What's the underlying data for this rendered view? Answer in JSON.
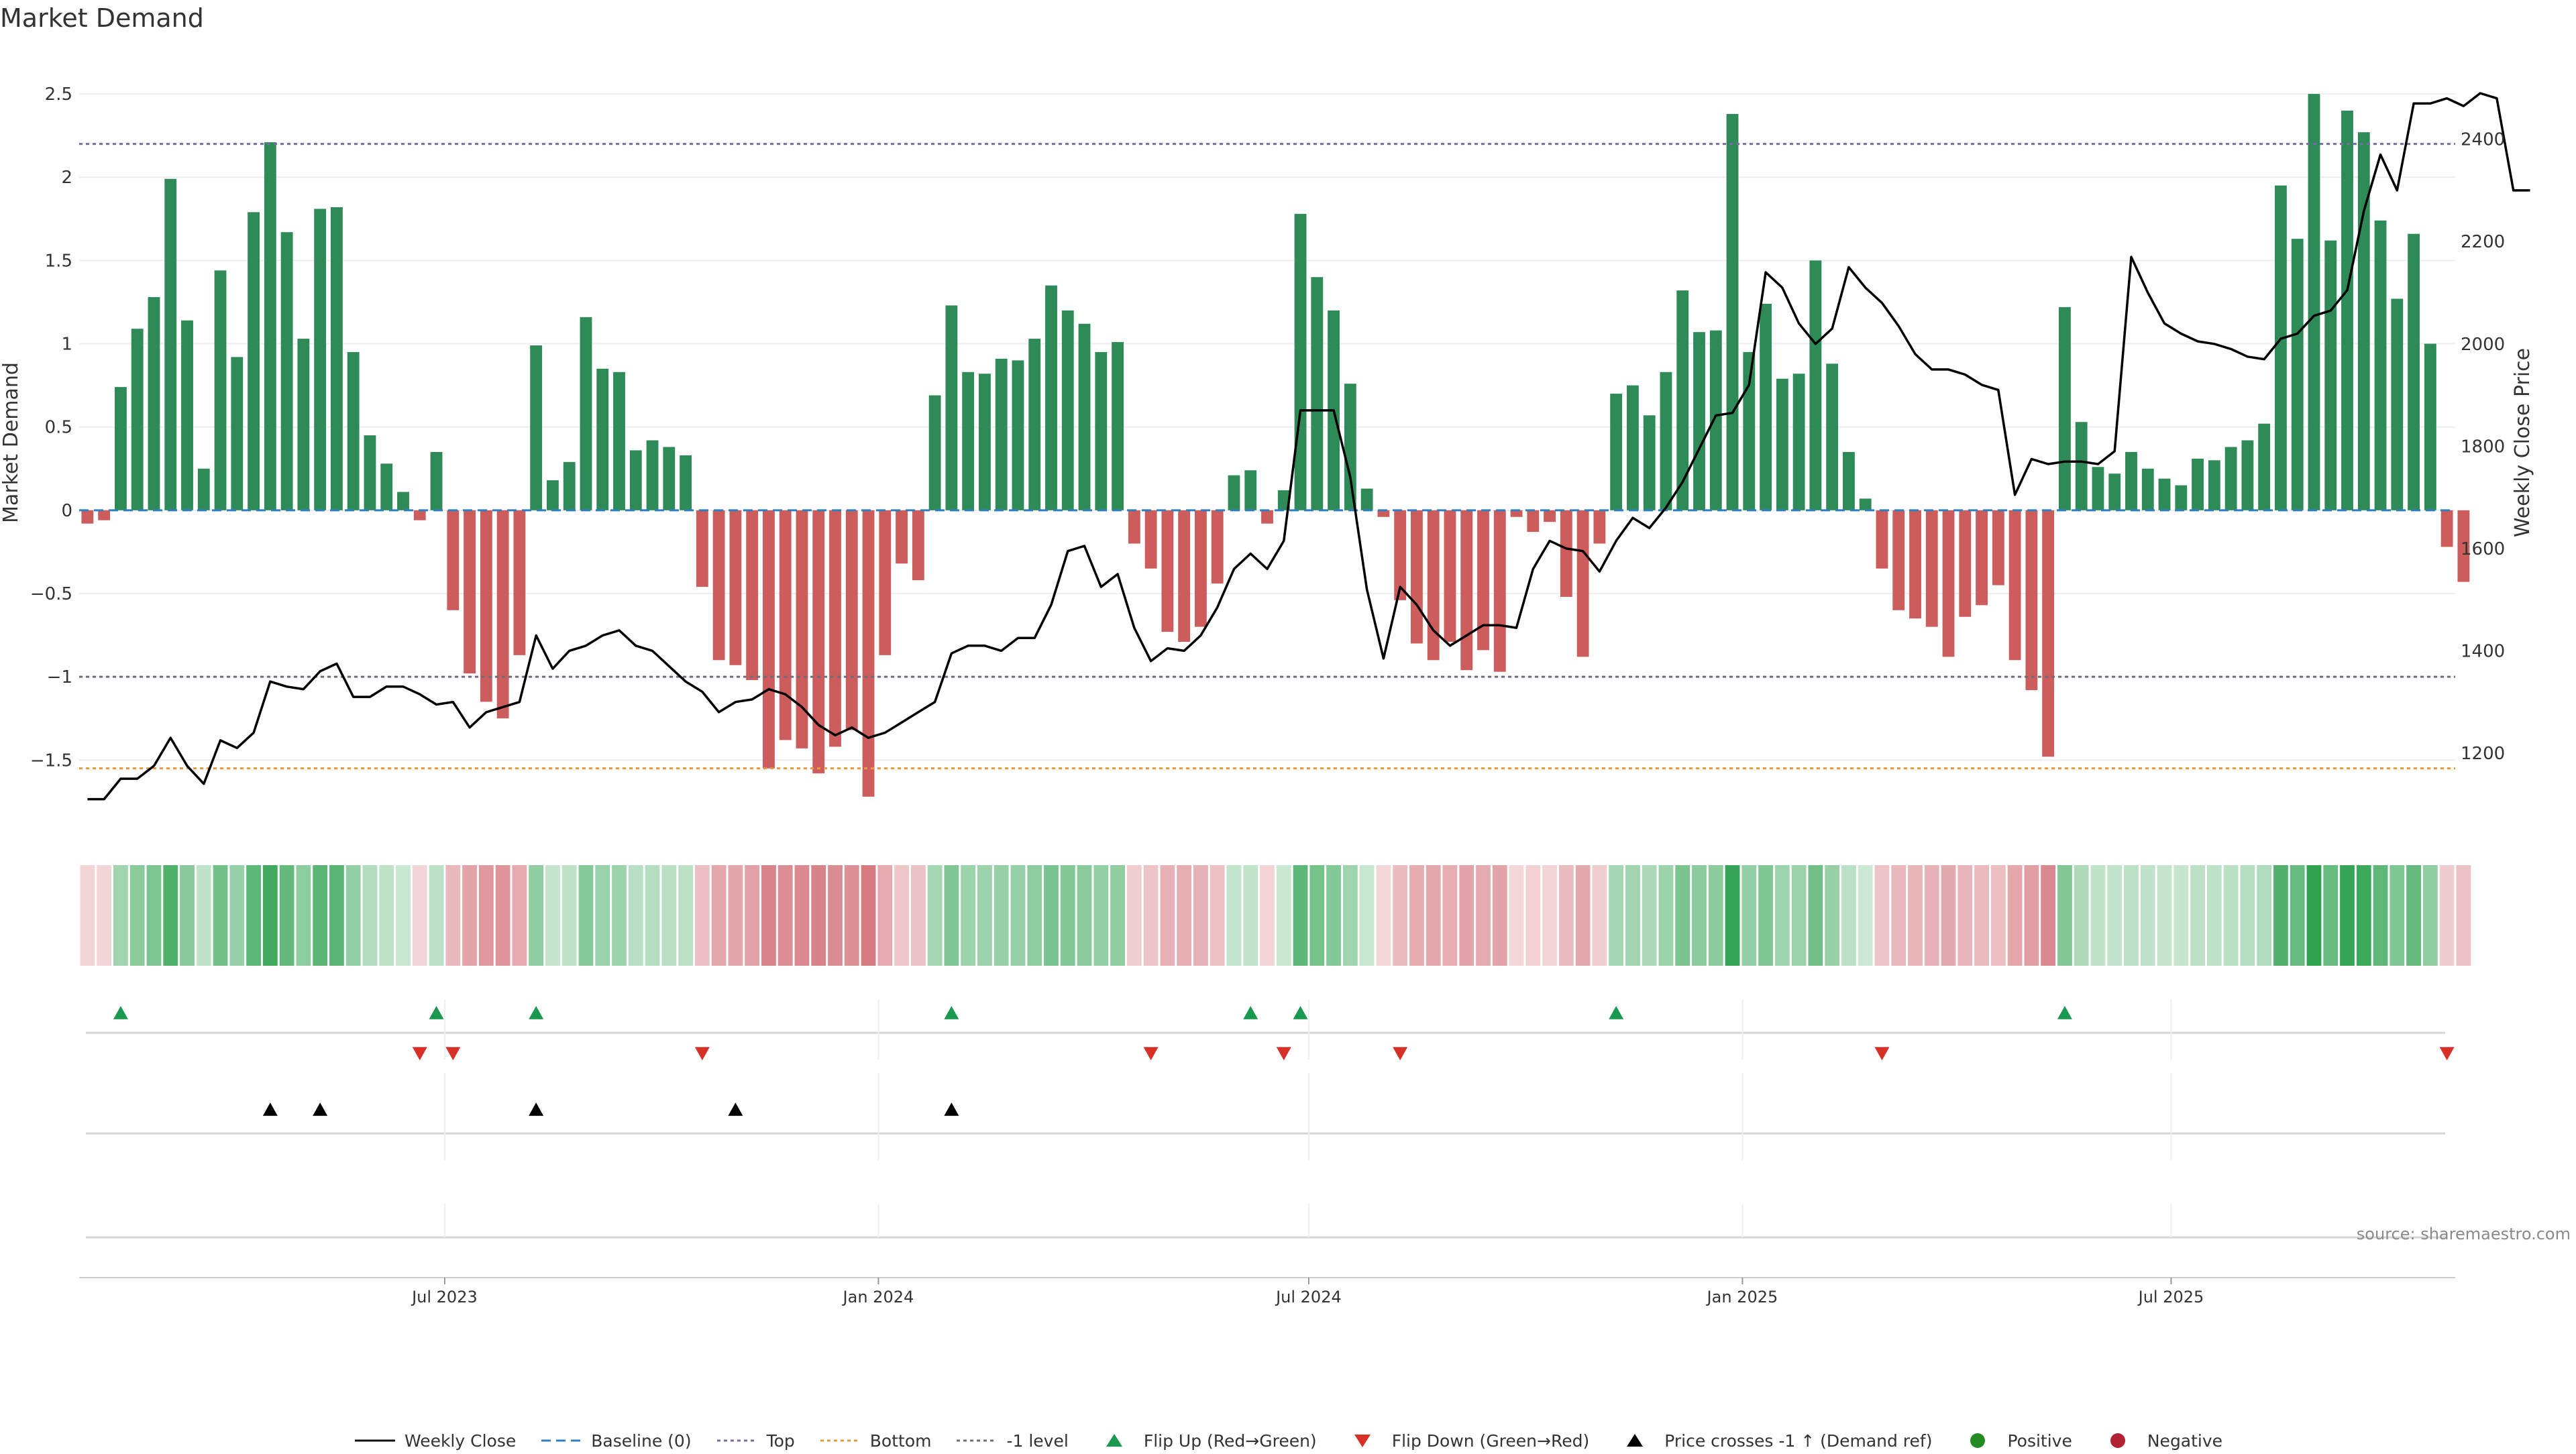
{
  "chart_data": {
    "type": "bar",
    "title": "Market Demand",
    "ylabel": "Market Demand",
    "y2label": "Weekly Close Price",
    "ylim": [
      -1.95,
      2.75
    ],
    "y2lim": [
      1040,
      2570
    ],
    "xlim": [
      -0.5,
      142.5
    ],
    "yticks": [
      -1.5,
      -1,
      -0.5,
      0,
      0.5,
      1,
      1.5,
      2,
      2.5
    ],
    "ytick_labels": [
      "−1.5",
      "−1",
      "−0.5",
      "0",
      "0.5",
      "1",
      "1.5",
      "2",
      "2.5"
    ],
    "y2ticks": [
      1200,
      1400,
      1600,
      1800,
      2000,
      2200,
      2400
    ],
    "y2tick_labels": [
      "1200",
      "1400",
      "1600",
      "1800",
      "2000",
      "2200",
      "2400"
    ],
    "x_ticks": [
      {
        "label": "Jul 2023",
        "index": 21.5
      },
      {
        "label": "Jan 2024",
        "index": 47.6
      },
      {
        "label": "Jul 2024",
        "index": 73.5
      },
      {
        "label": "Jan 2025",
        "index": 99.6
      },
      {
        "label": "Jul 2025",
        "index": 125.4
      }
    ],
    "demand": [
      -0.08,
      -0.06,
      0.74,
      1.09,
      1.28,
      1.99,
      1.14,
      0.25,
      1.44,
      0.92,
      1.79,
      2.21,
      1.67,
      1.03,
      1.81,
      1.82,
      0.95,
      0.45,
      0.28,
      0.11,
      -0.06,
      0.35,
      -0.6,
      -0.98,
      -1.15,
      -1.25,
      -0.87,
      0.99,
      0.18,
      0.29,
      1.16,
      0.85,
      0.83,
      0.36,
      0.42,
      0.38,
      0.33,
      -0.46,
      -0.9,
      -0.93,
      -1.02,
      -1.55,
      -1.38,
      -1.43,
      -1.58,
      -1.42,
      -1.32,
      -1.72,
      -0.87,
      -0.32,
      -0.42,
      0.69,
      1.23,
      0.83,
      0.82,
      0.91,
      0.9,
      1.03,
      1.35,
      1.2,
      1.12,
      0.95,
      1.01,
      -0.2,
      -0.35,
      -0.73,
      -0.79,
      -0.7,
      -0.44,
      0.21,
      0.24,
      -0.08,
      0.12,
      1.78,
      1.4,
      1.2,
      0.76,
      0.13,
      -0.04,
      -0.54,
      -0.8,
      -0.9,
      -0.79,
      -0.96,
      -0.84,
      -0.97,
      -0.04,
      -0.13,
      -0.07,
      -0.52,
      -0.88,
      -0.2,
      0.7,
      0.75,
      0.57,
      0.83,
      1.32,
      1.07,
      1.08,
      2.38,
      0.95,
      1.24,
      0.79,
      0.82,
      1.5,
      0.88,
      0.35,
      0.07,
      -0.35,
      -0.6,
      -0.65,
      -0.7,
      -0.88,
      -0.64,
      -0.57,
      -0.45,
      -0.9,
      -1.08,
      -1.48,
      1.22,
      0.53,
      0.26,
      0.22,
      0.35,
      0.25,
      0.19,
      0.15,
      0.31,
      0.3,
      0.38,
      0.42,
      0.52,
      1.95,
      1.63,
      2.5,
      1.62,
      2.4,
      2.27,
      1.74,
      1.27,
      1.66,
      1.0,
      -0.22,
      -0.43
    ],
    "weekly_close": [
      1110,
      1110,
      1150,
      1150,
      1175,
      1230,
      1175,
      1140,
      1225,
      1210,
      1240,
      1340,
      1330,
      1325,
      1360,
      1375,
      1310,
      1310,
      1330,
      1330,
      1315,
      1295,
      1300,
      1250,
      1280,
      1290,
      1300,
      1430,
      1365,
      1400,
      1410,
      1430,
      1440,
      1410,
      1400,
      1370,
      1340,
      1320,
      1280,
      1300,
      1305,
      1325,
      1315,
      1290,
      1255,
      1235,
      1250,
      1230,
      1240,
      1260,
      1280,
      1300,
      1395,
      1410,
      1410,
      1400,
      1425,
      1425,
      1490,
      1595,
      1605,
      1525,
      1550,
      1445,
      1380,
      1405,
      1400,
      1430,
      1485,
      1560,
      1590,
      1560,
      1615,
      1870,
      1870,
      1870,
      1740,
      1520,
      1385,
      1525,
      1490,
      1440,
      1410,
      1430,
      1450,
      1450,
      1445,
      1560,
      1615,
      1600,
      1595,
      1555,
      1615,
      1660,
      1640,
      1680,
      1730,
      1795,
      1860,
      1865,
      1920,
      2140,
      2110,
      2040,
      2000,
      2030,
      2150,
      2110,
      2080,
      2035,
      1980,
      1950,
      1950,
      1940,
      1920,
      1910,
      1705,
      1775,
      1765,
      1770,
      1770,
      1765,
      1790,
      2170,
      2100,
      2040,
      2020,
      2005,
      2000,
      1990,
      1975,
      1970,
      2010,
      2020,
      2055,
      2065,
      2105,
      2260,
      2370,
      2300,
      2470,
      2470,
      2480,
      2465,
      2490,
      2480,
      2300,
      2300
    ],
    "flip_up_indices": [
      2,
      21,
      27,
      52,
      70,
      73,
      92,
      119
    ],
    "flip_down_indices": [
      20,
      22,
      37,
      64,
      72,
      79,
      108,
      142
    ],
    "price_cross_indices": [
      11,
      14,
      27,
      39,
      52
    ],
    "reference_lines": [
      {
        "name": "Top",
        "value": 2.2,
        "color": "#7b6ba3"
      },
      {
        "name": "Bottom",
        "value": -1.55,
        "color": "#e69a3c"
      },
      {
        "name": "-1 level",
        "value": -1.0,
        "color": "#6e6e7a"
      }
    ],
    "colors": {
      "positive": "#2e8b57",
      "negative": "#cd5c5c",
      "baseline": "#2f7fc1",
      "price": "#000000",
      "flip_up": "#1a9850",
      "flip_down": "#d73027",
      "cross": "#000000"
    },
    "source": "source: sharemaestro.com",
    "legend": [
      {
        "label": "Weekly Close",
        "kind": "line",
        "color": "#111111"
      },
      {
        "label": "Baseline (0)",
        "kind": "dash",
        "color": "#2f7fc1"
      },
      {
        "label": "Top",
        "kind": "dot",
        "color": "#7b6ba3"
      },
      {
        "label": "Bottom",
        "kind": "dot",
        "color": "#e69a3c"
      },
      {
        "label": "-1 level",
        "kind": "dot",
        "color": "#6e6e7a"
      },
      {
        "label": "Flip Up (Red→Green)",
        "kind": "up",
        "color": "#1a9850"
      },
      {
        "label": "Flip Down (Green→Red)",
        "kind": "down",
        "color": "#d73027"
      },
      {
        "label": "Price crosses -1 ↑ (Demand ref)",
        "kind": "up",
        "color": "#000000"
      },
      {
        "label": "Positive",
        "kind": "circle",
        "color": "#228b22"
      },
      {
        "label": "Negative",
        "kind": "circle",
        "color": "#b22234"
      }
    ]
  }
}
